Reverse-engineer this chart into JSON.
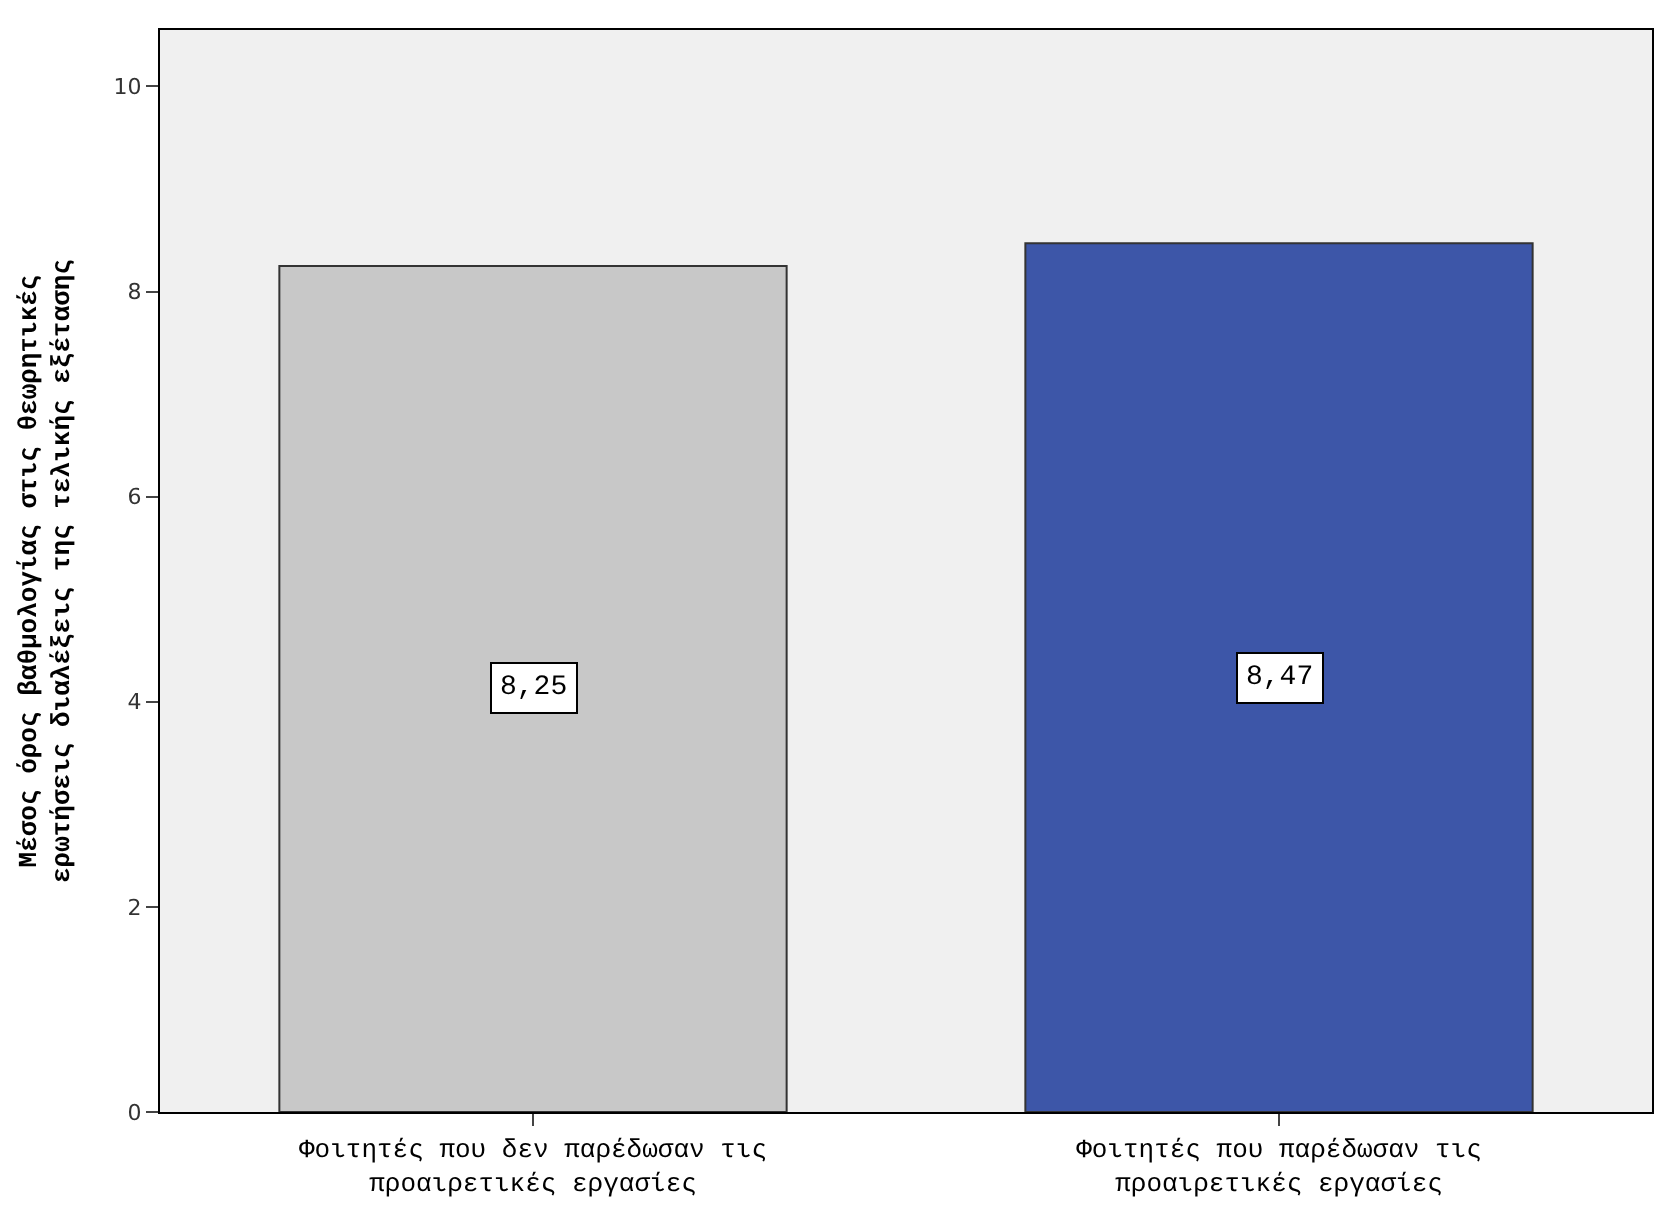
{
  "chart_data": {
    "type": "bar",
    "ylabel": "Μέσος όρος βαθμολογίας στις θεωρητικές\nερωτήσεις διαλέξεις της τελικής εξέτασης",
    "categories": [
      "Φοιτητές που δεν παρέδωσαν τις\nπροαιρετικές εργασίες",
      "Φοιτητές που παρέδωσαν τις\nπροαιρετικές εργασίες"
    ],
    "values": [
      8.25,
      8.47
    ],
    "colors": [
      "#c8c8c8",
      "#3d56a8"
    ],
    "value_labels": [
      "8,25",
      "8,47"
    ],
    "ylim": [
      0,
      10.55
    ],
    "yticks": [
      0,
      2,
      4,
      6,
      8,
      10
    ],
    "grid": false
  }
}
